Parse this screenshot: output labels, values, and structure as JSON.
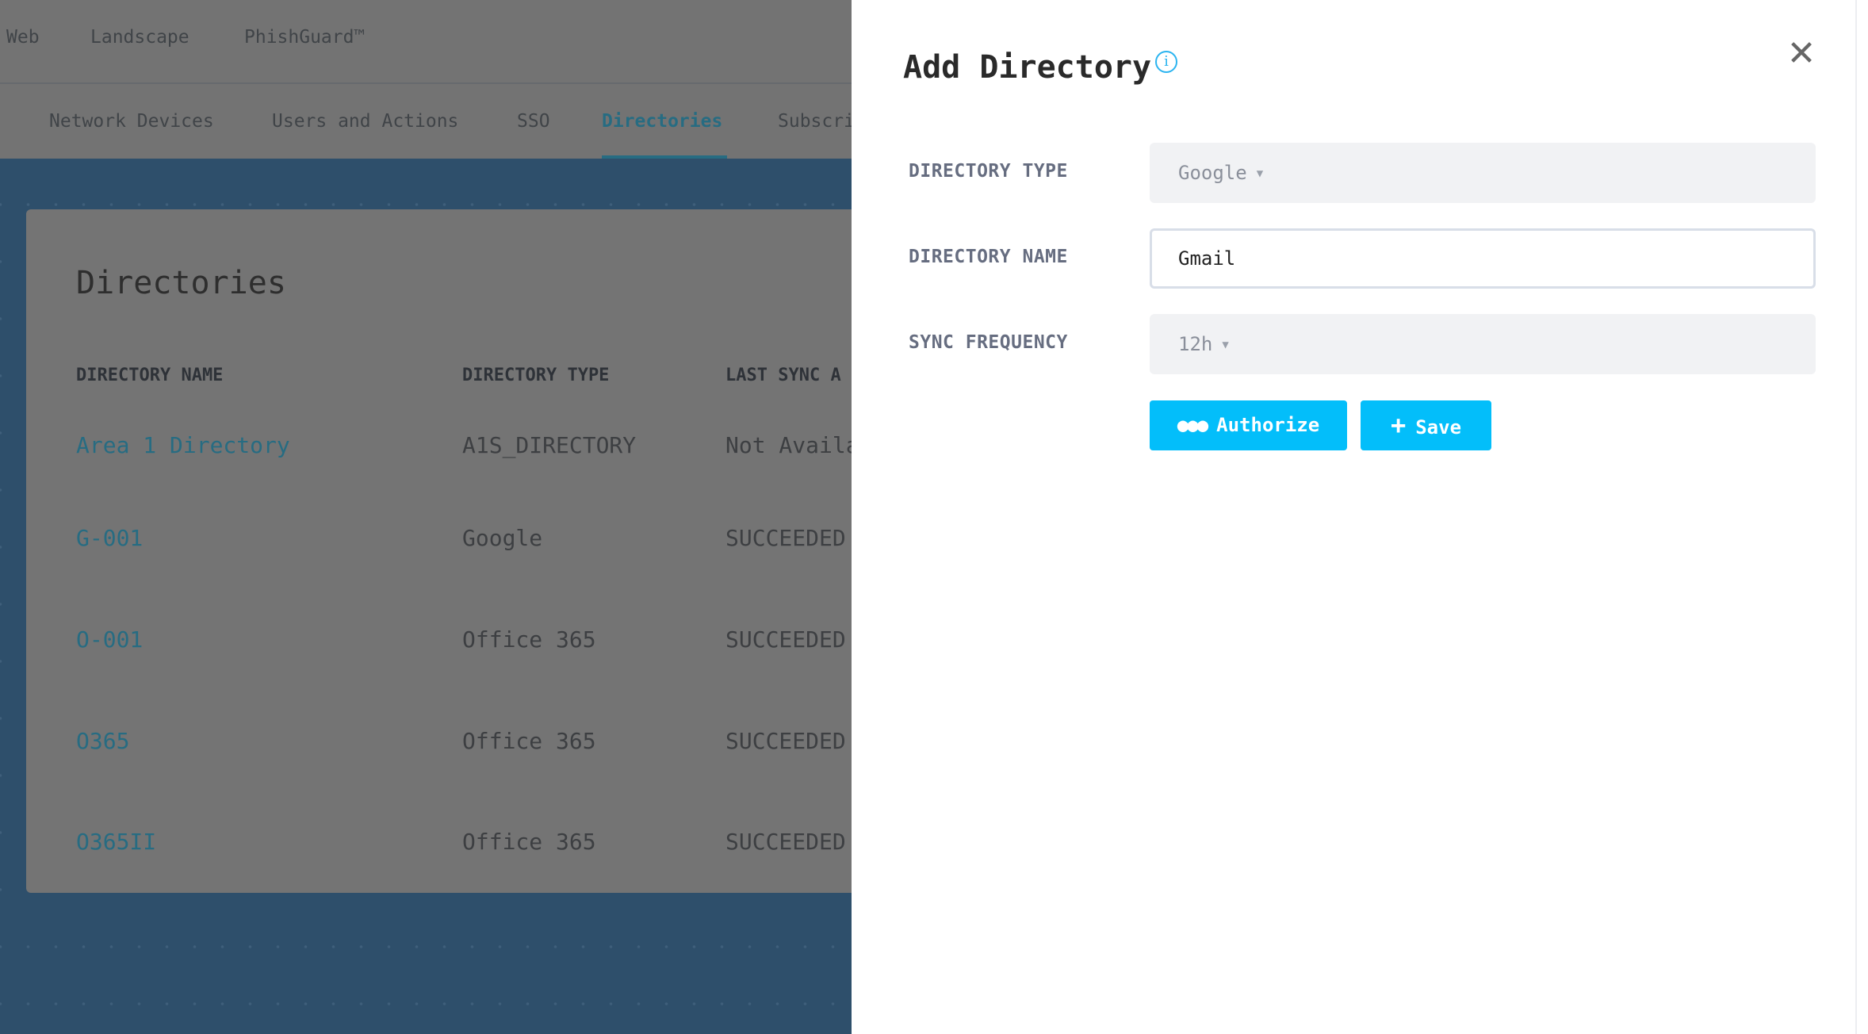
{
  "top_nav": [
    "Web",
    "Landscape",
    "PhishGuard™"
  ],
  "tabs": [
    "Network Devices",
    "Users and Actions",
    "SSO",
    "Directories",
    "Subscri"
  ],
  "active_tab": "Directories",
  "card": {
    "title": "Directories",
    "headers": [
      "DIRECTORY NAME",
      "DIRECTORY TYPE",
      "LAST SYNC A"
    ],
    "rows": [
      [
        "Area 1 Directory",
        "A1S_DIRECTORY",
        "Not Availa"
      ],
      [
        "G-001",
        "Google",
        "SUCCEEDED"
      ],
      [
        "O-001",
        "Office 365",
        "SUCCEEDED"
      ],
      [
        "O365",
        "Office 365",
        "SUCCEEDED"
      ],
      [
        "O365II",
        "Office 365",
        "SUCCEEDED"
      ]
    ]
  },
  "panel": {
    "title": "Add Directory",
    "info_icon": "info-circle-icon",
    "close_icon": "close-x-icon",
    "fields": {
      "type_label": "DIRECTORY TYPE",
      "type_value": "Google",
      "name_label": "DIRECTORY NAME",
      "name_value": "Gmail",
      "freq_label": "SYNC FREQUENCY",
      "freq_value": "12h"
    },
    "authorize_label": "Authorize",
    "save_label": "Save",
    "accent": "#03befa"
  }
}
